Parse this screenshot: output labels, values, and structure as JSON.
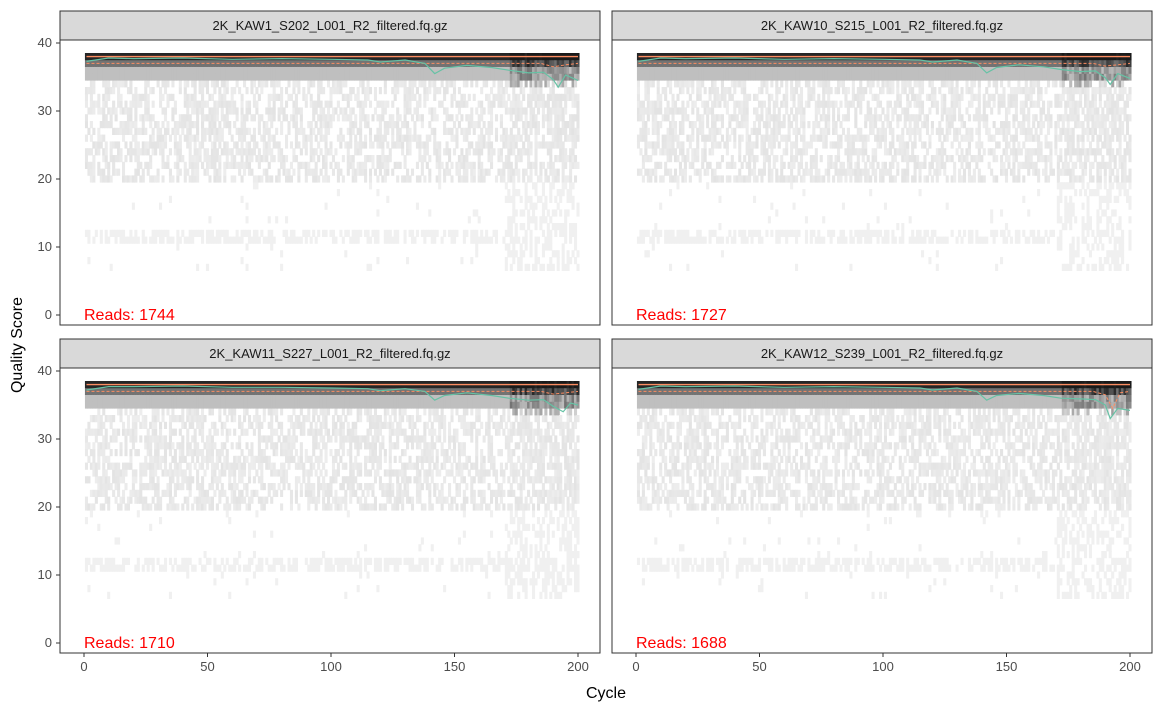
{
  "chart_data": {
    "type": "heatmap",
    "xlabel": "Cycle",
    "ylabel": "Quality Score",
    "xlim": [
      0,
      200
    ],
    "ylim": [
      0,
      40
    ],
    "x_ticks": [
      0,
      50,
      100,
      150,
      200
    ],
    "y_ticks": [
      0,
      10,
      20,
      30,
      40
    ],
    "grid": false,
    "colors": {
      "heat": "#1a1a1a",
      "mean": "#66c2a5",
      "quartiles": "#fc8d62",
      "reads_text": "#ff0000",
      "strip_bg": "#d9d9d9"
    },
    "panels": [
      {
        "title": "2K_KAW1_S202_L001_R2_filtered.fq.gz",
        "reads_text": "Reads:  1744",
        "mean_quality": [
          [
            1,
            37.3
          ],
          [
            10,
            37.8
          ],
          [
            20,
            37.7
          ],
          [
            40,
            37.8
          ],
          [
            60,
            37.6
          ],
          [
            80,
            37.7
          ],
          [
            100,
            37.6
          ],
          [
            115,
            37.5
          ],
          [
            120,
            37.2
          ],
          [
            130,
            37.5
          ],
          [
            138,
            37.0
          ],
          [
            142,
            35.5
          ],
          [
            146,
            36.3
          ],
          [
            155,
            36.7
          ],
          [
            165,
            36.4
          ],
          [
            172,
            36.0
          ],
          [
            180,
            35.6
          ],
          [
            186,
            35.7
          ],
          [
            190,
            34.6
          ],
          [
            192,
            33.5
          ],
          [
            195,
            35.3
          ],
          [
            200,
            34.5
          ]
        ],
        "median_quality": [
          [
            1,
            38
          ],
          [
            200,
            38
          ]
        ],
        "q25_quality": [
          [
            1,
            37
          ],
          [
            185,
            37
          ],
          [
            190,
            36.5
          ],
          [
            195,
            36.8
          ],
          [
            200,
            37
          ]
        ]
      },
      {
        "title": "2K_KAW10_S215_L001_R2_filtered.fq.gz",
        "reads_text": "Reads:  1727",
        "mean_quality": [
          [
            1,
            37.3
          ],
          [
            10,
            37.8
          ],
          [
            20,
            37.7
          ],
          [
            40,
            37.8
          ],
          [
            60,
            37.6
          ],
          [
            80,
            37.7
          ],
          [
            100,
            37.6
          ],
          [
            115,
            37.5
          ],
          [
            120,
            37.2
          ],
          [
            130,
            37.5
          ],
          [
            138,
            37.0
          ],
          [
            142,
            35.6
          ],
          [
            146,
            36.4
          ],
          [
            155,
            36.8
          ],
          [
            165,
            36.5
          ],
          [
            172,
            36.1
          ],
          [
            180,
            35.8
          ],
          [
            186,
            35.9
          ],
          [
            190,
            34.9
          ],
          [
            192,
            33.9
          ],
          [
            195,
            35.5
          ],
          [
            200,
            34.8
          ]
        ],
        "median_quality": [
          [
            1,
            38
          ],
          [
            200,
            38
          ]
        ],
        "q25_quality": [
          [
            1,
            37
          ],
          [
            185,
            37
          ],
          [
            190,
            36.6
          ],
          [
            195,
            36.8
          ],
          [
            200,
            37
          ]
        ]
      },
      {
        "title": "2K_KAW11_S227_L001_R2_filtered.fq.gz",
        "reads_text": "Reads:  1710",
        "mean_quality": [
          [
            1,
            37.2
          ],
          [
            10,
            37.7
          ],
          [
            20,
            37.7
          ],
          [
            40,
            37.8
          ],
          [
            60,
            37.6
          ],
          [
            80,
            37.6
          ],
          [
            100,
            37.5
          ],
          [
            115,
            37.4
          ],
          [
            120,
            37.1
          ],
          [
            130,
            37.4
          ],
          [
            138,
            37.0
          ],
          [
            142,
            35.7
          ],
          [
            146,
            36.4
          ],
          [
            155,
            36.8
          ],
          [
            165,
            36.4
          ],
          [
            172,
            36.0
          ],
          [
            180,
            35.7
          ],
          [
            186,
            35.8
          ],
          [
            190,
            34.8
          ],
          [
            194,
            34.0
          ],
          [
            197,
            35.3
          ],
          [
            200,
            35.0
          ]
        ],
        "median_quality": [
          [
            1,
            38
          ],
          [
            200,
            38
          ]
        ],
        "q25_quality": [
          [
            1,
            37
          ],
          [
            185,
            37
          ],
          [
            190,
            36.6
          ],
          [
            195,
            36.8
          ],
          [
            200,
            37
          ]
        ]
      },
      {
        "title": "2K_KAW12_S239_L001_R2_filtered.fq.gz",
        "reads_text": "Reads:  1688",
        "mean_quality": [
          [
            1,
            37.3
          ],
          [
            10,
            37.8
          ],
          [
            20,
            37.7
          ],
          [
            40,
            37.8
          ],
          [
            60,
            37.6
          ],
          [
            80,
            37.7
          ],
          [
            100,
            37.6
          ],
          [
            115,
            37.5
          ],
          [
            120,
            37.2
          ],
          [
            130,
            37.5
          ],
          [
            138,
            37.0
          ],
          [
            142,
            35.7
          ],
          [
            146,
            36.4
          ],
          [
            155,
            36.7
          ],
          [
            165,
            36.4
          ],
          [
            172,
            36.0
          ],
          [
            180,
            35.9
          ],
          [
            186,
            35.8
          ],
          [
            190,
            35.0
          ],
          [
            192,
            33.0
          ],
          [
            195,
            34.5
          ],
          [
            200,
            34.2
          ]
        ],
        "median_quality": [
          [
            1,
            38
          ],
          [
            200,
            38
          ]
        ],
        "q25_quality": [
          [
            1,
            37
          ],
          [
            185,
            37
          ],
          [
            190,
            36.5
          ],
          [
            193,
            34.5
          ],
          [
            196,
            36.8
          ],
          [
            200,
            37
          ]
        ]
      }
    ]
  }
}
